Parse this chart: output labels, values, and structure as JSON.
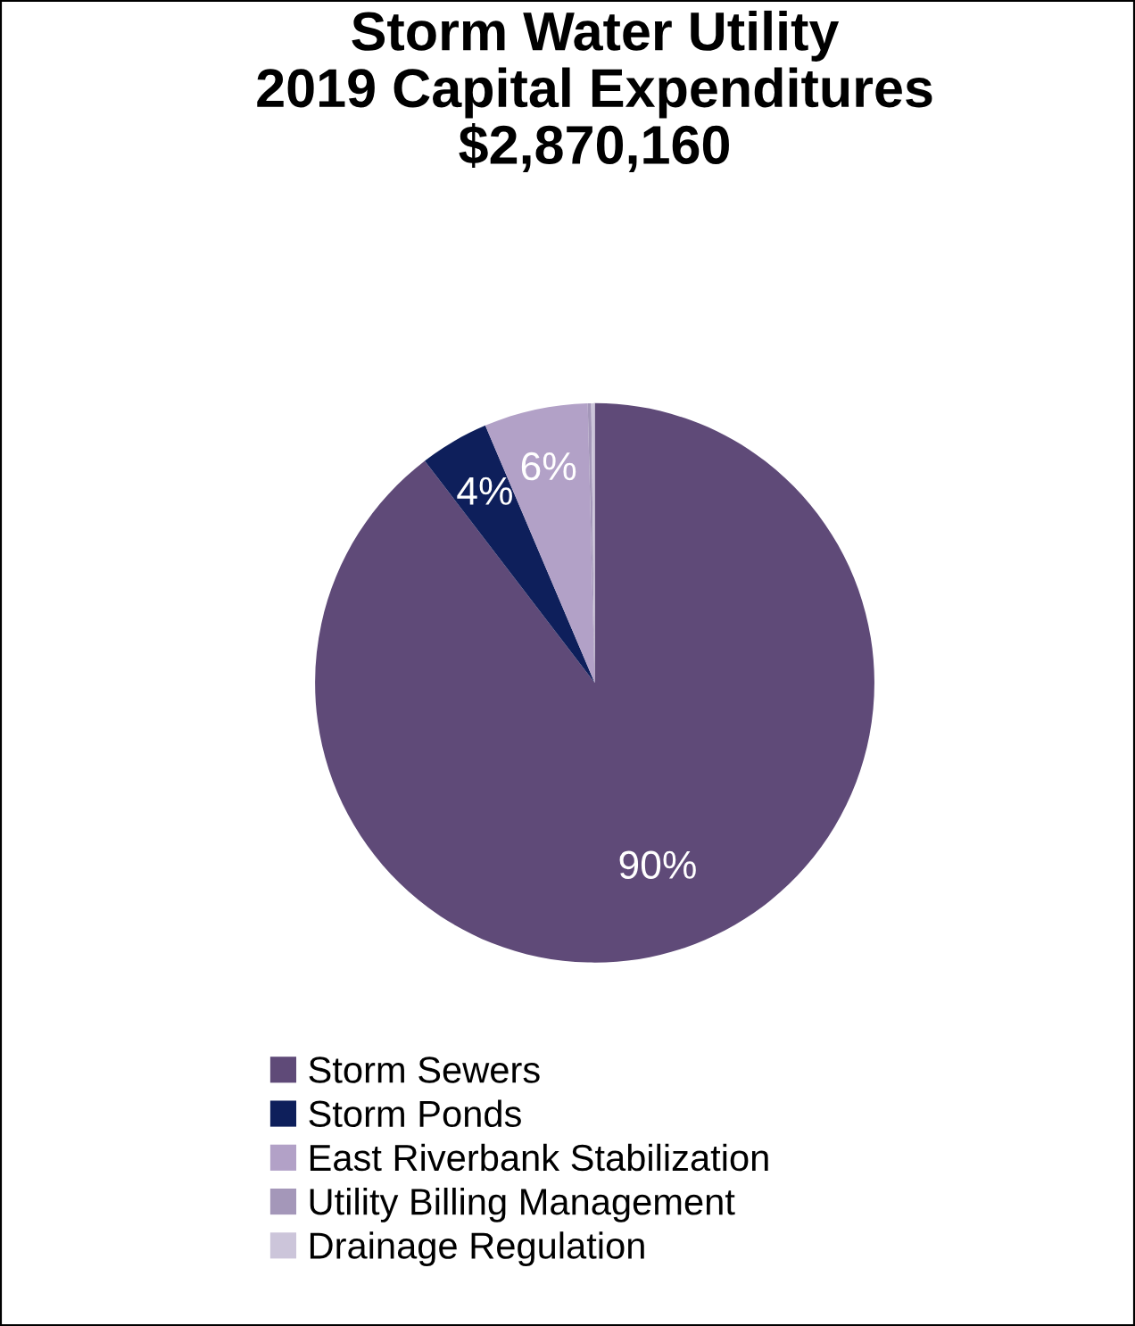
{
  "chart_data": {
    "type": "pie",
    "title": "Storm Water Utility\n2019 Capital Expenditures\n$2,870,160",
    "categories": [
      "Storm Sewers",
      "Storm Ponds",
      "East Riverbank Stabilization",
      "Utility Billing Management",
      "Drainage Regulation"
    ],
    "values": [
      89.6,
      4.0,
      6.0,
      0.2,
      0.2
    ],
    "colors": [
      "#5f4a78",
      "#0e1f5b",
      "#b2a1c7",
      "#a497b9",
      "#ccc5da"
    ],
    "value_labels": [
      "90%",
      "4%",
      "6%",
      null,
      null
    ],
    "legend": "bottom"
  }
}
